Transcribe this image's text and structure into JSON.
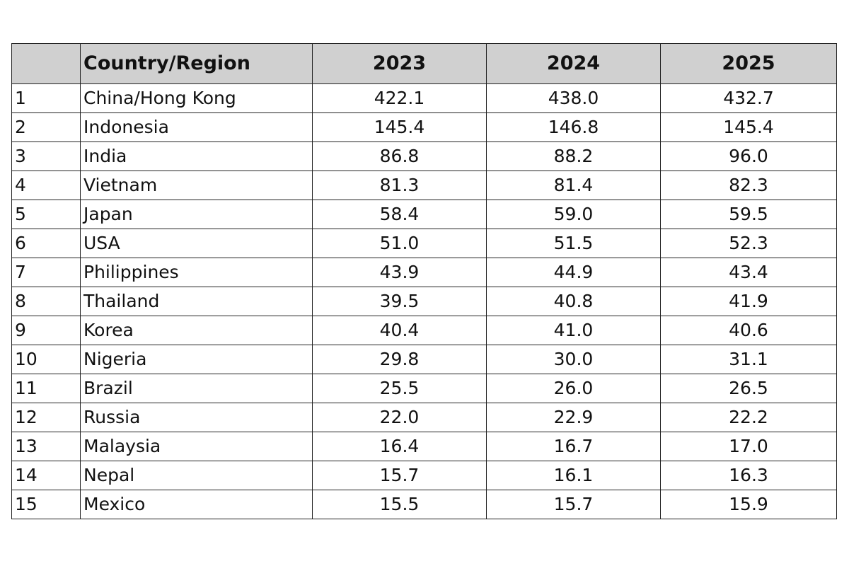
{
  "chart_data": {
    "type": "table",
    "columns": [
      "",
      "Country/Region",
      "2023",
      "2024",
      "2025"
    ],
    "rows": [
      {
        "rank": "1",
        "country": "China/Hong Kong",
        "values": [
          "422.1",
          "438.0",
          "432.7"
        ]
      },
      {
        "rank": "2",
        "country": "Indonesia",
        "values": [
          "145.4",
          "146.8",
          "145.4"
        ]
      },
      {
        "rank": "3",
        "country": "India",
        "values": [
          "86.8",
          "88.2",
          "96.0"
        ]
      },
      {
        "rank": "4",
        "country": "Vietnam",
        "values": [
          "81.3",
          "81.4",
          "82.3"
        ]
      },
      {
        "rank": "5",
        "country": "Japan",
        "values": [
          "58.4",
          "59.0",
          "59.5"
        ]
      },
      {
        "rank": "6",
        "country": "USA",
        "values": [
          "51.0",
          "51.5",
          "52.3"
        ]
      },
      {
        "rank": "7",
        "country": "Philippines",
        "values": [
          "43.9",
          "44.9",
          "43.4"
        ]
      },
      {
        "rank": "8",
        "country": "Thailand",
        "values": [
          "39.5",
          "40.8",
          "41.9"
        ]
      },
      {
        "rank": "9",
        "country": "Korea",
        "values": [
          "40.4",
          "41.0",
          "40.6"
        ]
      },
      {
        "rank": "10",
        "country": "Nigeria",
        "values": [
          "29.8",
          "30.0",
          "31.1"
        ]
      },
      {
        "rank": "11",
        "country": "Brazil",
        "values": [
          "25.5",
          "26.0",
          "26.5"
        ]
      },
      {
        "rank": "12",
        "country": "Russia",
        "values": [
          "22.0",
          "22.9",
          "22.2"
        ]
      },
      {
        "rank": "13",
        "country": "Malaysia",
        "values": [
          "16.4",
          "16.7",
          "17.0"
        ]
      },
      {
        "rank": "14",
        "country": "Nepal",
        "values": [
          "15.7",
          "16.1",
          "16.3"
        ]
      },
      {
        "rank": "15",
        "country": "Mexico",
        "values": [
          "15.5",
          "15.7",
          "15.9"
        ]
      }
    ],
    "header_background": "#d0d0d0",
    "border_color": "#222222"
  }
}
